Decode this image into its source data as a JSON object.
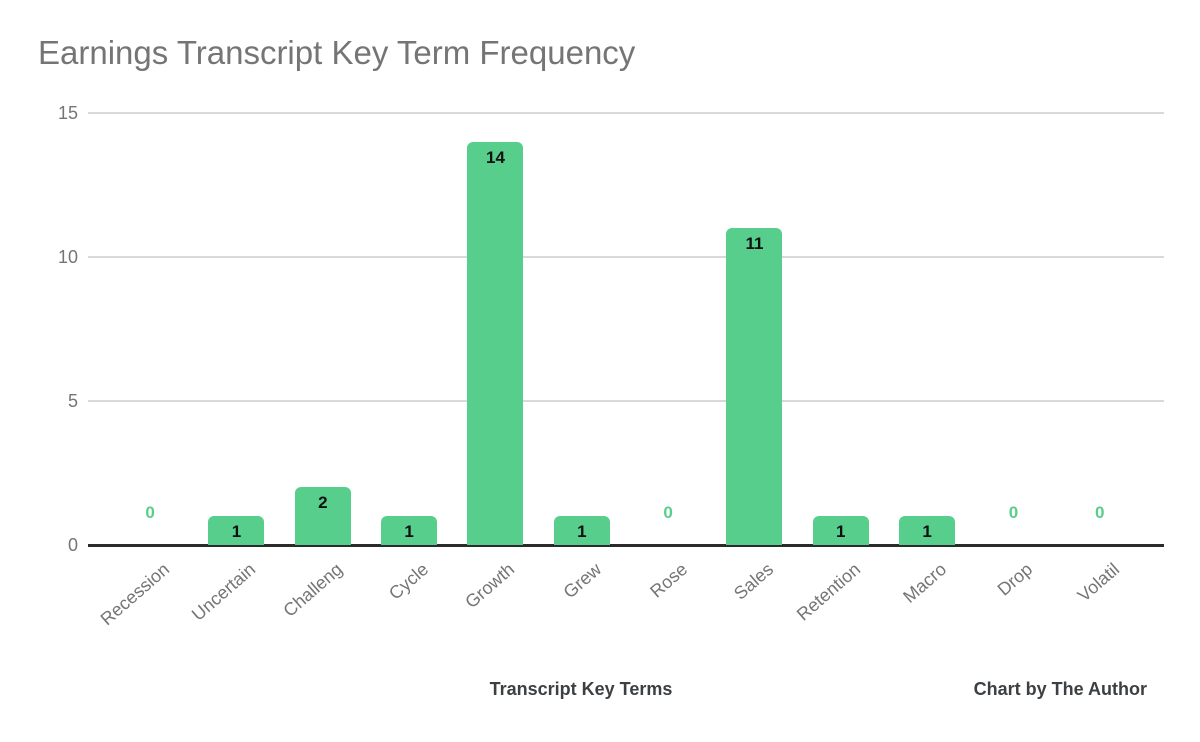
{
  "chart_data": {
    "type": "bar",
    "title": "Earnings Transcript Key Term Frequency",
    "xlabel": "Transcript Key Terms",
    "ylabel": "",
    "categories": [
      "Recession",
      "Uncertain",
      "Challeng",
      "Cycle",
      "Growth",
      "Grew",
      "Rose",
      "Sales",
      "Retention",
      "Macro",
      "Drop",
      "Volatil"
    ],
    "values": [
      0,
      1,
      2,
      1,
      14,
      1,
      0,
      11,
      1,
      1,
      0,
      0
    ],
    "ylim": [
      0,
      15
    ],
    "yticks": [
      0,
      5,
      10,
      15
    ],
    "grid": true,
    "legend_position": "none",
    "colors": {
      "bar": "#58CE8D",
      "title_text": "#757575",
      "axis_text": "#757575",
      "gridline": "#d9d9d9",
      "baseline": "#2b2b2b",
      "value_label": "#111111",
      "zero_value_label": "#58CE8D",
      "footer_text": "#3c4043"
    }
  },
  "credit": "Chart by The Author"
}
